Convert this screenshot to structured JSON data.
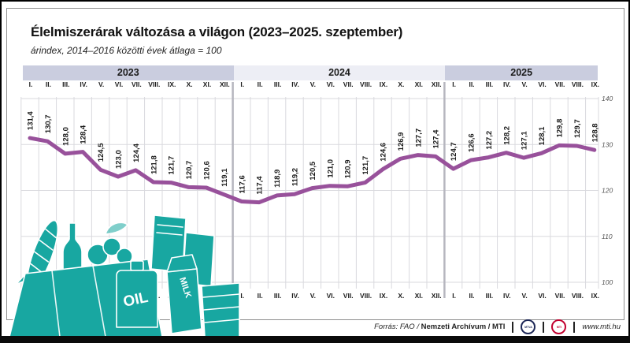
{
  "header": {
    "title": "Élelmiszerárak változása a világon (2023–2025. szeptember)",
    "subtitle": "árindex, 2014–2016 közötti évek átlaga = 100"
  },
  "chart_data": {
    "type": "line",
    "title": "Élelmiszerárak változása a világon (2023–2025. szeptember)",
    "subtitle": "árindex, 2014–2016 közötti évek átlaga = 100",
    "ylabel": "",
    "xlabel": "",
    "ylim": [
      100,
      140
    ],
    "yticks": [
      140,
      130,
      120,
      110,
      100
    ],
    "grid": true,
    "legend": "none",
    "line_color": "#98519b",
    "years": [
      {
        "label": "2023",
        "months": [
          "I.",
          "II.",
          "III.",
          "IV.",
          "V.",
          "VI.",
          "VII.",
          "VIII.",
          "IX.",
          "X.",
          "XI.",
          "XII."
        ],
        "values": [
          131.4,
          130.7,
          128.0,
          128.4,
          124.5,
          123.0,
          124.4,
          121.8,
          121.7,
          120.7,
          120.6,
          119.1
        ]
      },
      {
        "label": "2024",
        "months": [
          "I.",
          "II.",
          "III.",
          "IV.",
          "V.",
          "VI.",
          "VII.",
          "VIII.",
          "IX.",
          "X.",
          "XI.",
          "XII."
        ],
        "values": [
          117.6,
          117.4,
          118.9,
          119.2,
          120.5,
          121.0,
          120.9,
          121.7,
          124.6,
          126.9,
          127.7,
          127.4
        ]
      },
      {
        "label": "2025",
        "months": [
          "I.",
          "II.",
          "III.",
          "IV.",
          "V.",
          "VI.",
          "VII.",
          "VIII.",
          "IX."
        ],
        "values": [
          124.7,
          126.6,
          127.2,
          128.2,
          127.1,
          128.1,
          129.8,
          129.7,
          128.8
        ]
      }
    ]
  },
  "illustration": {
    "oil_label": "OIL",
    "milk_label": "MILK"
  },
  "footer": {
    "source_italic": "Forrás: FAO /",
    "source_bold": "Nemzeti Archívum",
    "source_after": "/ MTI",
    "logo_mtva": "MTVA",
    "logo_mti": "MTI",
    "website": "www.mti.hu"
  },
  "colors": {
    "line": "#98519b",
    "band_dark": "#cacddf",
    "band_light": "#edeef5",
    "grid": "#d9d9de",
    "year_separator": "#b6b6bf",
    "teal": "#18a7a1"
  }
}
